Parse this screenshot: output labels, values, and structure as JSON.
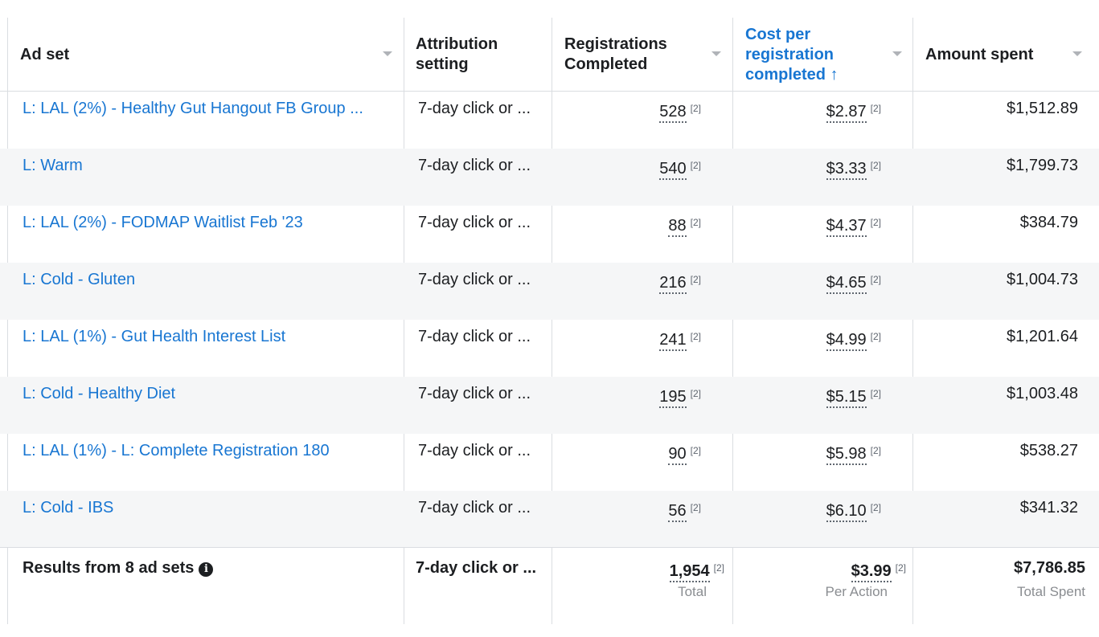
{
  "columns": {
    "ad_set": "Ad set",
    "attribution_line1": "Attribution",
    "attribution_line2": "setting",
    "registrations_line1": "Registrations",
    "registrations_line2": "Completed",
    "cost_line1": "Cost per",
    "cost_line2": "registration",
    "cost_line3": "completed",
    "sort_arrow": "↑",
    "amount": "Amount spent"
  },
  "footnote": "[2]",
  "rows": [
    {
      "name": "L: LAL (2%) - Healthy Gut Hangout FB Group ...",
      "attribution": "7-day click or ...",
      "registrations": "528",
      "cost": "$2.87",
      "amount": "$1,512.89"
    },
    {
      "name": "L: Warm",
      "attribution": "7-day click or ...",
      "registrations": "540",
      "cost": "$3.33",
      "amount": "$1,799.73"
    },
    {
      "name": "L: LAL (2%) - FODMAP Waitlist Feb '23",
      "attribution": "7-day click or ...",
      "registrations": "88",
      "cost": "$4.37",
      "amount": "$384.79"
    },
    {
      "name": "L: Cold - Gluten",
      "attribution": "7-day click or ...",
      "registrations": "216",
      "cost": "$4.65",
      "amount": "$1,004.73"
    },
    {
      "name": "L: LAL (1%) - Gut Health Interest List",
      "attribution": "7-day click or ...",
      "registrations": "241",
      "cost": "$4.99",
      "amount": "$1,201.64"
    },
    {
      "name": "L: Cold - Healthy Diet",
      "attribution": "7-day click or ...",
      "registrations": "195",
      "cost": "$5.15",
      "amount": "$1,003.48"
    },
    {
      "name": "L: LAL (1%) - L: Complete Registration 180",
      "attribution": "7-day click or ...",
      "registrations": "90",
      "cost": "$5.98",
      "amount": "$538.27"
    },
    {
      "name": "L: Cold - IBS",
      "attribution": "7-day click or ...",
      "registrations": "56",
      "cost": "$6.10",
      "amount": "$341.32"
    }
  ],
  "totals": {
    "label": "Results from 8 ad sets",
    "info_icon": "i",
    "attribution": "7-day click or ...",
    "registrations": "1,954",
    "registrations_sub": "Total",
    "cost": "$3.99",
    "cost_sub": "Per Action",
    "amount": "$7,786.85",
    "amount_sub": "Total Spent"
  },
  "colors": {
    "link": "#1876d2",
    "text": "#1c1e21",
    "muted": "#8a8d91",
    "row_alt": "#f5f6f7",
    "border": "#dadde1"
  }
}
